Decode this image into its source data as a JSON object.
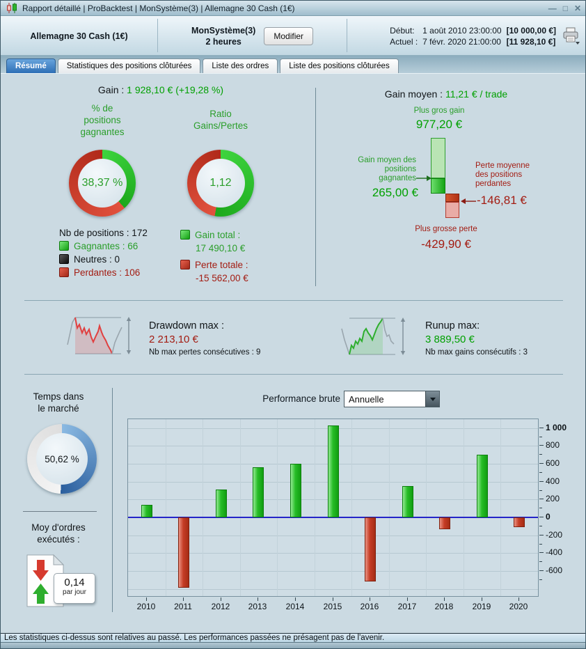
{
  "window": {
    "title": "Rapport détaillé | ProBacktest | MonSystème(3) | Allemagne 30 Cash (1€)",
    "controls": {
      "minimize": "—",
      "maximize": "□",
      "close": "✕"
    }
  },
  "header": {
    "instrument": "Allemagne 30 Cash (1€)",
    "system_name": "MonSystème(3)",
    "system_timeframe": "2 heures",
    "modify_label": "Modifier",
    "start_label": "Début:",
    "start_date": "1 août 2010 23:00:00",
    "start_amount": "[10 000,00 €]",
    "current_label": "Actuel :",
    "current_date": "7 févr. 2020 21:00:00",
    "current_amount": "[11 928,10 €]"
  },
  "tabs": {
    "items": [
      {
        "label": "Résumé",
        "active": true
      },
      {
        "label": "Statistiques des positions clôturées",
        "active": false
      },
      {
        "label": "Liste des ordres",
        "active": false
      },
      {
        "label": "Liste des positions clôturées",
        "active": false
      }
    ]
  },
  "summary": {
    "gain_label": "Gain :",
    "gain_value": "1 928,10 € (+19,28 %)",
    "win_pct_title": "% de\npositions\ngagnantes",
    "win_pct_text": "38,37 %",
    "win_pct_value": 38.37,
    "ratio_title": "Ratio\nGains/Pertes",
    "ratio_text": "1,12",
    "ratio_green_pct": 52.83,
    "positions_label": "Nb de positions : 172",
    "winners_label": "Gagnantes : 66",
    "neutral_label": "Neutres : 0",
    "losers_label": "Perdantes : 106",
    "gain_total_label": "Gain total :",
    "gain_total_value": "17 490,10 €",
    "loss_total_label": "Perte totale :",
    "loss_total_value": "-15 562,00 €"
  },
  "gain_avg": {
    "title_label": "Gain moyen :",
    "title_value": "11,21 € / trade",
    "best_label": "Plus gros gain",
    "best_value": "977,20 €",
    "best_num": 977.2,
    "avg_win_label": "Gain moyen des\npositions\ngagnantes",
    "avg_win_value": "265,00 €",
    "avg_win_num": 265.0,
    "avg_loss_label": "Perte moyenne\ndes positions\nperdantes",
    "avg_loss_value": "-146,81 €",
    "avg_loss_num": -146.81,
    "worst_label": "Plus grosse perte",
    "worst_value": "-429,90 €",
    "worst_num": -429.9
  },
  "drawdown": {
    "label": "Drawdown max :",
    "value": "2 213,10 €",
    "sub": "Nb max pertes consécutives : 9"
  },
  "runup": {
    "label": "Runup max:",
    "value": "3 889,50 €",
    "sub": "Nb max gains consécutifs : 3"
  },
  "market_time": {
    "title": "Temps dans\nle marché",
    "text": "50,62 %",
    "value": 50.62
  },
  "orders": {
    "title": "Moy d'ordres\nexécutés :",
    "value": "0,14",
    "unit": "par jour"
  },
  "performance": {
    "label": "Performance brute",
    "selected": "Annuelle"
  },
  "chart_data": {
    "type": "bar",
    "title": "Performance brute",
    "period_selected": "Annuelle",
    "categories": [
      "2010",
      "2011",
      "2012",
      "2013",
      "2014",
      "2015",
      "2016",
      "2017",
      "2018",
      "2019",
      "2020"
    ],
    "values": [
      140,
      -790,
      310,
      560,
      600,
      1030,
      -720,
      350,
      -135,
      700,
      -110
    ],
    "ylim": [
      -880,
      1100
    ],
    "yticks": [
      {
        "value": 1000,
        "label": "1 000",
        "bold": true
      },
      {
        "value": 800,
        "label": "800"
      },
      {
        "value": 600,
        "label": "600"
      },
      {
        "value": 400,
        "label": "400"
      },
      {
        "value": 200,
        "label": "200"
      },
      {
        "value": 0,
        "label": "0",
        "bold": true
      },
      {
        "value": -200,
        "label": "-200"
      },
      {
        "value": -400,
        "label": "-400"
      },
      {
        "value": -600,
        "label": "-600"
      }
    ],
    "gridlines": [
      1000,
      800,
      600,
      400,
      200,
      -200,
      -400,
      -600,
      -800
    ],
    "tick_top": 1000,
    "tick_bottom": -700,
    "minor_step": 100,
    "bar_positive_color": "#22bb22",
    "bar_negative_color": "#c63d26",
    "zero_line_color": "#2424c8",
    "grid": true,
    "legend": "none"
  },
  "colors": {
    "accent_green": "#00a000",
    "accent_dark_red": "#a31c12",
    "donut_green": "#1ca81c",
    "donut_red": "#d2402f",
    "time_blue": "#2b5f9e",
    "tab_active": "#2e6fb6"
  },
  "footer": {
    "text": "Les statistiques ci-dessus sont relatives au passé. Les performances passées ne présagent pas de l'avenir."
  }
}
